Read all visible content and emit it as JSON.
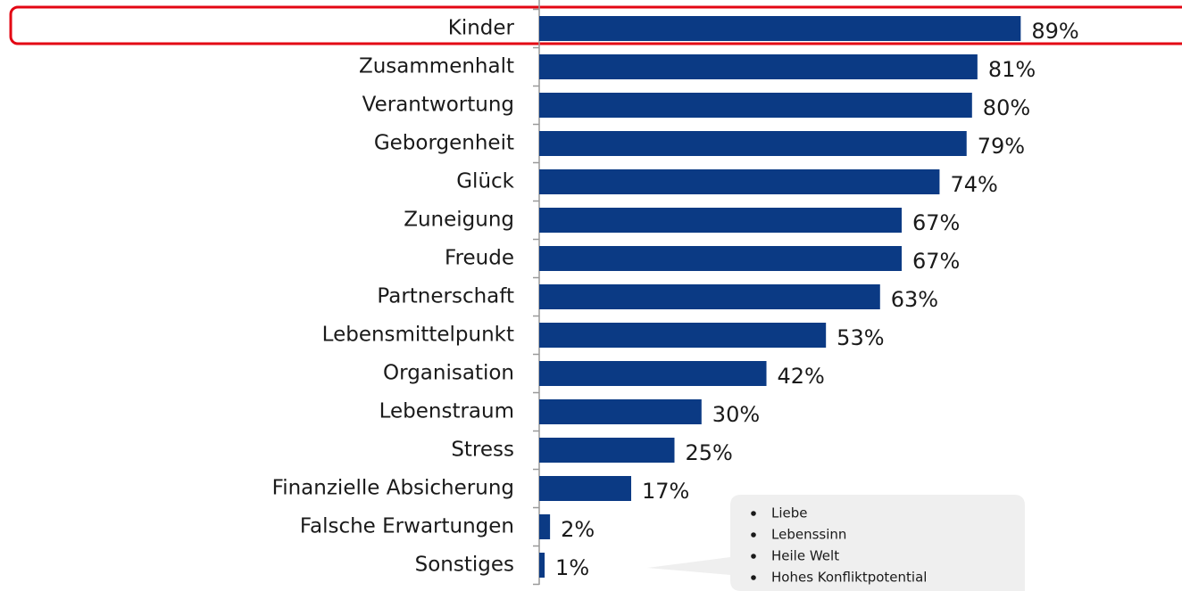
{
  "chart_data": {
    "type": "barh",
    "color": "#0b3a84",
    "categories": [
      "Kinder",
      "Zusammenhalt",
      "Verantwortung",
      "Geborgenheit",
      "Glück",
      "Zuneigung",
      "Freude",
      "Partnerschaft",
      "Lebensmittelpunkt",
      "Organisation",
      "Lebenstraum",
      "Stress",
      "Finanzielle Absicherung",
      "Falsche Erwartungen",
      "Sonstiges"
    ],
    "values": [
      89,
      81,
      80,
      79,
      74,
      67,
      67,
      63,
      53,
      42,
      30,
      25,
      17,
      2,
      1
    ],
    "value_labels": [
      "89%",
      "81%",
      "80%",
      "79%",
      "74%",
      "67%",
      "67%",
      "63%",
      "53%",
      "42%",
      "30%",
      "25%",
      "17%",
      "2%",
      "1%"
    ],
    "annotations": [
      "Liebe",
      "Lebenssinn",
      "Heile Welt",
      "Hohes Konfliktpotential"
    ]
  }
}
